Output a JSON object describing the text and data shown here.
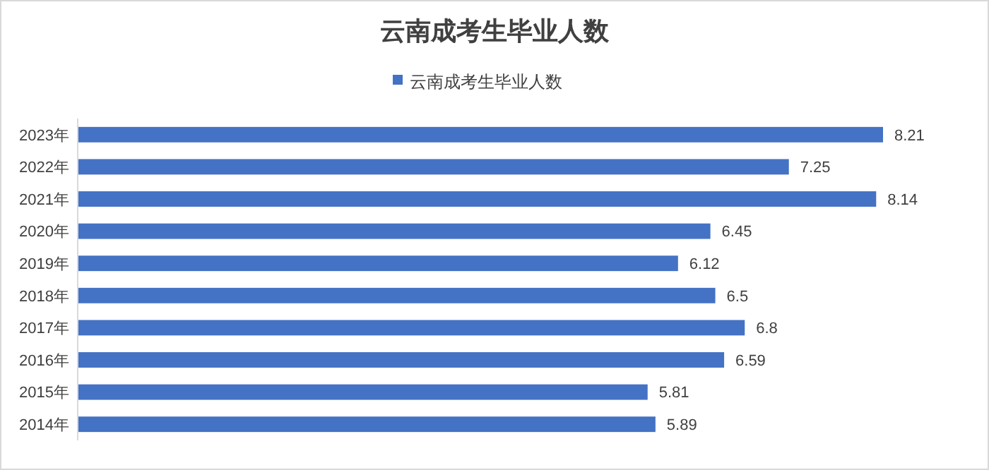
{
  "chart_data": {
    "type": "bar",
    "orientation": "horizontal",
    "title": "云南成考生毕业人数",
    "categories": [
      "2023年",
      "2022年",
      "2021年",
      "2020年",
      "2019年",
      "2018年",
      "2017年",
      "2016年",
      "2015年",
      "2014年"
    ],
    "series": [
      {
        "name": "云南成考生毕业人数",
        "color": "#4472c4",
        "values": [
          8.21,
          7.25,
          8.14,
          6.45,
          6.12,
          6.5,
          6.8,
          6.59,
          5.81,
          5.89
        ]
      }
    ],
    "tick_labels": "y",
    "data_labels": true,
    "legend": "top",
    "grid": false
  }
}
